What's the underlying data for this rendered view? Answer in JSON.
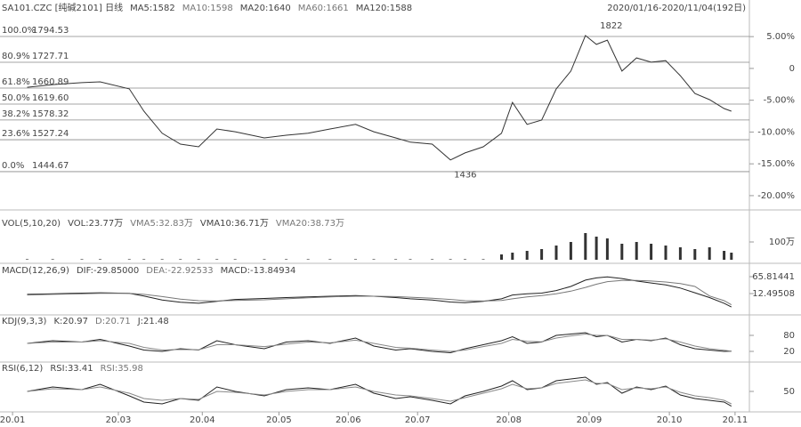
{
  "chart_data": [
    {
      "type": "line",
      "title": "SA101.CZC [纯碱2101] 日线",
      "indicators": [
        "MA5:1582",
        "MA10:1598",
        "MA20:1640",
        "MA60:1661",
        "MA120:1588"
      ],
      "date_range": "2020/01/16-2020/11/04(192日)",
      "xlim": [
        0,
        200
      ],
      "ylim": [
        1359.3,
        1842.9
      ],
      "y2lim": [
        -21.41,
        7.96
      ],
      "y2ticks": [
        {
          "value": 5,
          "label": "5.00%"
        },
        0,
        {
          "value": -5,
          "label": "-5.00%"
        },
        {
          "value": -10,
          "label": "-10.00%"
        },
        {
          "value": -15,
          "label": "-15.00%"
        },
        {
          "value": -20,
          "label": "-20.00%"
        }
      ],
      "levels": [
        {
          "label": "100.0%",
          "price": 1794.53
        },
        {
          "label": "80.9%",
          "price": 1727.71
        },
        {
          "label": "61.8%",
          "price": 1660.89
        },
        {
          "label": "50.0%",
          "price": {
            "value": 1619.6,
            "label": "1619.60"
          }
        },
        {
          "label": "38.2%",
          "price": 1578.32
        },
        {
          "label": "23.6%",
          "price": 1527.24
        },
        {
          "label": "0.0%",
          "price": 1444.67
        }
      ],
      "annotations": [
        {
          "value": 1822,
          "x": 161
        },
        {
          "value": 1436,
          "x": 121
        }
      ],
      "x": [
        5,
        12,
        20,
        25,
        33,
        37,
        42,
        47,
        52,
        57,
        62,
        70,
        76,
        82,
        88,
        95,
        100,
        106,
        110,
        116,
        121,
        125,
        130,
        135,
        138,
        142,
        146,
        150,
        154,
        158,
        161,
        164,
        168,
        172,
        176,
        180,
        184,
        188,
        192,
        196,
        198
      ],
      "values": [
        1663,
        1670,
        1675,
        1677,
        1659,
        1601,
        1544,
        1516,
        1509,
        1555,
        1548,
        1532,
        1539,
        1544,
        1555,
        1567,
        1548,
        1532,
        1521,
        1516,
        1475,
        1493,
        1509,
        1544,
        1624,
        1567,
        1578,
        1659,
        1705,
        1797,
        1774,
        1785,
        1705,
        1739,
        1728,
        1732,
        1693,
        1647,
        1631,
        1608,
        1601
      ],
      "color": "#333333"
    },
    {
      "type": "bar",
      "title": "VOL(5,10,20)",
      "indicators": [
        "VOL:23.77万",
        "VMA5:32.83万",
        "VMA10:36.71万",
        "VMA20:38.73万"
      ],
      "xlim": [
        0,
        200
      ],
      "ylim": [
        0,
        2350000
      ],
      "yticks": [
        {
          "value": 1000000,
          "label": "100万"
        }
      ],
      "x": [
        5,
        12,
        20,
        25,
        33,
        37,
        42,
        47,
        52,
        57,
        62,
        70,
        76,
        82,
        88,
        95,
        100,
        106,
        110,
        116,
        121,
        125,
        130,
        135,
        138,
        142,
        146,
        150,
        154,
        158,
        161,
        164,
        168,
        172,
        176,
        180,
        184,
        188,
        192,
        196,
        198
      ],
      "values": [
        30000,
        30000,
        30000,
        30000,
        30000,
        30000,
        30000,
        30000,
        30000,
        30000,
        30000,
        30000,
        30000,
        30000,
        30000,
        30000,
        30000,
        30000,
        30000,
        30000,
        30000,
        30000,
        30000,
        300000,
        400000,
        500000,
        600000,
        800000,
        1000000,
        1500000,
        1300000,
        1200000,
        900000,
        1000000,
        900000,
        800000,
        700000,
        600000,
        700000,
        500000,
        400000
      ],
      "color": "#333333"
    },
    {
      "type": "line",
      "title": "MACD(12,26,9)",
      "indicators": [
        "DIF:-29.85000",
        "DEA:-22.92533",
        "MACD:-13.84934"
      ],
      "xlim": [
        0,
        200
      ],
      "ylim": [
        -43.6,
        96.7
      ],
      "yticks": [
        65.81441,
        12.49508
      ],
      "x": [
        5,
        12,
        20,
        25,
        33,
        37,
        42,
        47,
        52,
        57,
        62,
        70,
        76,
        82,
        88,
        95,
        100,
        106,
        110,
        116,
        121,
        125,
        130,
        135,
        138,
        142,
        146,
        150,
        154,
        158,
        161,
        164,
        168,
        172,
        176,
        180,
        184,
        188,
        192,
        196,
        198
      ],
      "series": [
        {
          "color": "#222222",
          "values": [
            10,
            12,
            14,
            15,
            13,
            5,
            -8,
            -15,
            -18,
            -12,
            -6,
            -3,
            0,
            2,
            4,
            6,
            4,
            0,
            -4,
            -8,
            -14,
            -16,
            -12,
            -4,
            8,
            12,
            14,
            22,
            35,
            55,
            62,
            65,
            60,
            52,
            46,
            40,
            30,
            15,
            0,
            -18,
            -29.85
          ]
        },
        {
          "color": "#777777",
          "values": [
            8,
            10,
            12,
            13,
            13,
            10,
            3,
            -5,
            -10,
            -11,
            -9,
            -7,
            -4,
            -1,
            2,
            4,
            4,
            3,
            1,
            -2,
            -6,
            -10,
            -11,
            -9,
            -4,
            2,
            6,
            12,
            20,
            32,
            42,
            50,
            54,
            54,
            52,
            49,
            44,
            35,
            5,
            -10,
            -22.93
          ]
        }
      ]
    },
    {
      "type": "line",
      "title": "KDJ(9,3,3)",
      "indicators": [
        "K:20.97",
        "D:20.71",
        "J:21.48"
      ],
      "xlim": [
        0,
        200
      ],
      "ylim": [
        -6.7,
        146.7
      ],
      "yticks": [
        80,
        20
      ],
      "x": [
        5,
        12,
        20,
        25,
        33,
        37,
        42,
        47,
        52,
        57,
        62,
        70,
        76,
        82,
        88,
        95,
        100,
        106,
        110,
        116,
        121,
        125,
        130,
        135,
        138,
        142,
        146,
        150,
        154,
        158,
        161,
        164,
        168,
        172,
        176,
        180,
        184,
        188,
        192,
        196,
        198
      ],
      "series": [
        {
          "color": "#222222",
          "values": [
            50,
            60,
            55,
            65,
            40,
            25,
            20,
            30,
            25,
            60,
            45,
            30,
            55,
            60,
            50,
            70,
            40,
            25,
            30,
            20,
            15,
            30,
            45,
            60,
            75,
            50,
            55,
            80,
            85,
            90,
            75,
            80,
            55,
            65,
            60,
            70,
            45,
            30,
            25,
            20,
            20.97
          ]
        },
        {
          "color": "#888888",
          "values": [
            50,
            55,
            55,
            60,
            50,
            35,
            25,
            27,
            26,
            45,
            45,
            38,
            47,
            55,
            52,
            62,
            50,
            35,
            32,
            25,
            20,
            25,
            38,
            50,
            65,
            58,
            56,
            70,
            78,
            85,
            80,
            80,
            65,
            65,
            62,
            67,
            55,
            40,
            30,
            24,
            20.71
          ]
        }
      ]
    },
    {
      "type": "line",
      "title": "RSI(6,12)",
      "indicators": [
        "RSI:33.41",
        "RSI:35.98"
      ],
      "xlim": [
        0,
        200
      ],
      "ylim": [
        30,
        70
      ],
      "yticks": [
        50
      ],
      "xticks": [
        {
          "value": 1,
          "label": "20.01"
        },
        {
          "value": 30,
          "label": "20.03"
        },
        {
          "value": 53,
          "label": "20.04"
        },
        {
          "value": 74,
          "label": "20.05"
        },
        {
          "value": 93,
          "label": "20.06"
        },
        {
          "value": 112,
          "label": "20.07"
        },
        {
          "value": 137,
          "label": "20.08"
        },
        {
          "value": 159,
          "label": "20.09"
        },
        {
          "value": 181,
          "label": "20.10"
        },
        {
          "value": 199,
          "label": "20.11"
        }
      ],
      "x": [
        5,
        12,
        20,
        25,
        33,
        37,
        42,
        47,
        52,
        57,
        62,
        70,
        76,
        82,
        88,
        95,
        100,
        106,
        110,
        116,
        121,
        125,
        130,
        135,
        138,
        142,
        146,
        150,
        154,
        158,
        161,
        164,
        168,
        172,
        176,
        180,
        184,
        188,
        192,
        196,
        198
      ],
      "series": [
        {
          "color": "#222222",
          "values": [
            50,
            55,
            52,
            58,
            45,
            38,
            36,
            42,
            40,
            55,
            50,
            45,
            52,
            54,
            52,
            58,
            48,
            42,
            44,
            40,
            36,
            45,
            50,
            56,
            62,
            52,
            54,
            62,
            64,
            66,
            58,
            60,
            48,
            55,
            52,
            56,
            46,
            42,
            40,
            38,
            33.41
          ]
        },
        {
          "color": "#888888",
          "values": [
            50,
            53,
            52,
            55,
            48,
            42,
            40,
            42,
            41,
            50,
            49,
            46,
            50,
            52,
            52,
            55,
            50,
            46,
            45,
            42,
            39,
            43,
            48,
            53,
            58,
            53,
            54,
            59,
            61,
            63,
            59,
            59,
            52,
            54,
            53,
            55,
            49,
            45,
            43,
            40,
            35.98
          ]
        }
      ]
    }
  ]
}
